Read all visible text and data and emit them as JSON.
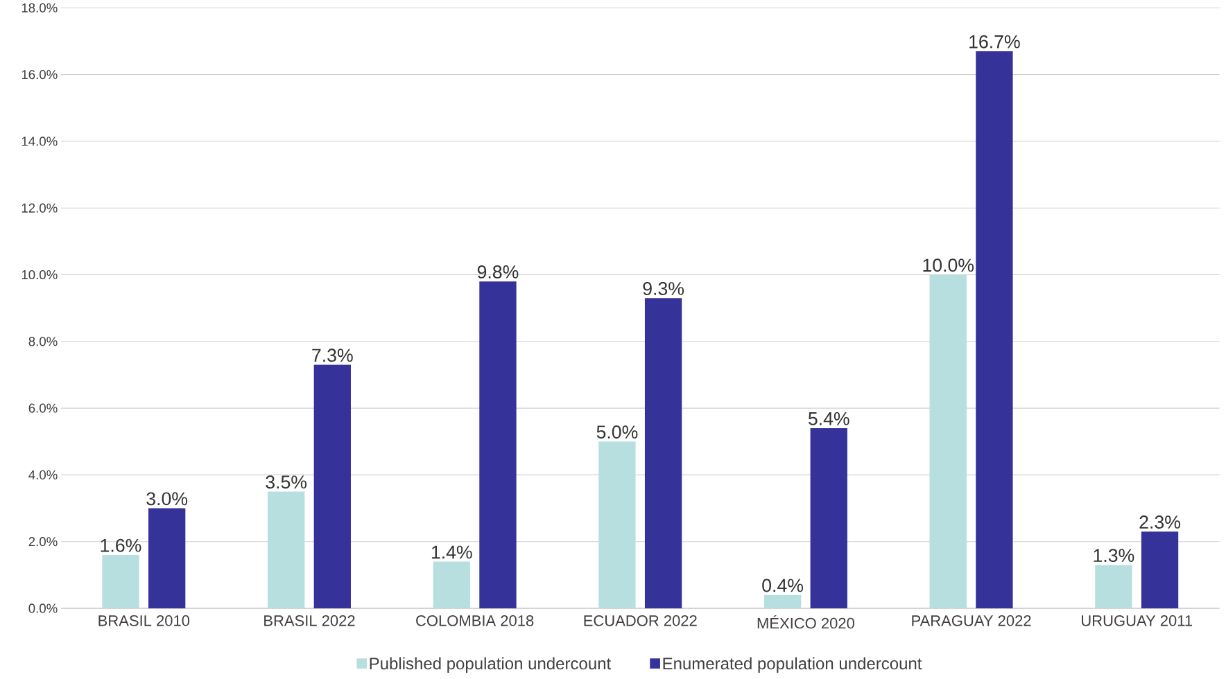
{
  "chart_data": {
    "type": "bar",
    "categories": [
      "BRASIL 2010",
      "BRASIL 2022",
      "COLOMBIA 2018",
      "ECUADOR 2022",
      "MÉXICO 2020",
      "PARAGUAY 2022",
      "URUGUAY 2011"
    ],
    "series": [
      {
        "name": "Published population undercount",
        "color": "#b8dfe0",
        "values": [
          1.6,
          3.5,
          1.4,
          5.0,
          0.4,
          10.0,
          1.3
        ],
        "value_labels": [
          "1.6%",
          "3.5%",
          "1.4%",
          "5.0%",
          "0.4%",
          "10.0%",
          "1.3%"
        ]
      },
      {
        "name": "Enumerated population undercount",
        "color": "#353399",
        "values": [
          3.0,
          7.3,
          9.8,
          9.3,
          5.4,
          16.7,
          2.3
        ],
        "value_labels": [
          "3.0%",
          "7.3%",
          "9.8%",
          "9.3%",
          "5.4%",
          "16.7%",
          "2.3%"
        ]
      }
    ],
    "ylim": [
      0,
      18
    ],
    "yticks": [
      {
        "value": 0,
        "label": "0.0%"
      },
      {
        "value": 2,
        "label": "2.0%"
      },
      {
        "value": 4,
        "label": "4.0%"
      },
      {
        "value": 6,
        "label": "6.0%"
      },
      {
        "value": 8,
        "label": "8.0%"
      },
      {
        "value": 10,
        "label": "10.0%"
      },
      {
        "value": 12,
        "label": "12.0%"
      },
      {
        "value": 14,
        "label": "14.0%"
      },
      {
        "value": 16,
        "label": "16.0%"
      },
      {
        "value": 18,
        "label": "18.0%"
      }
    ],
    "grid": "y",
    "legend": "bottom"
  }
}
